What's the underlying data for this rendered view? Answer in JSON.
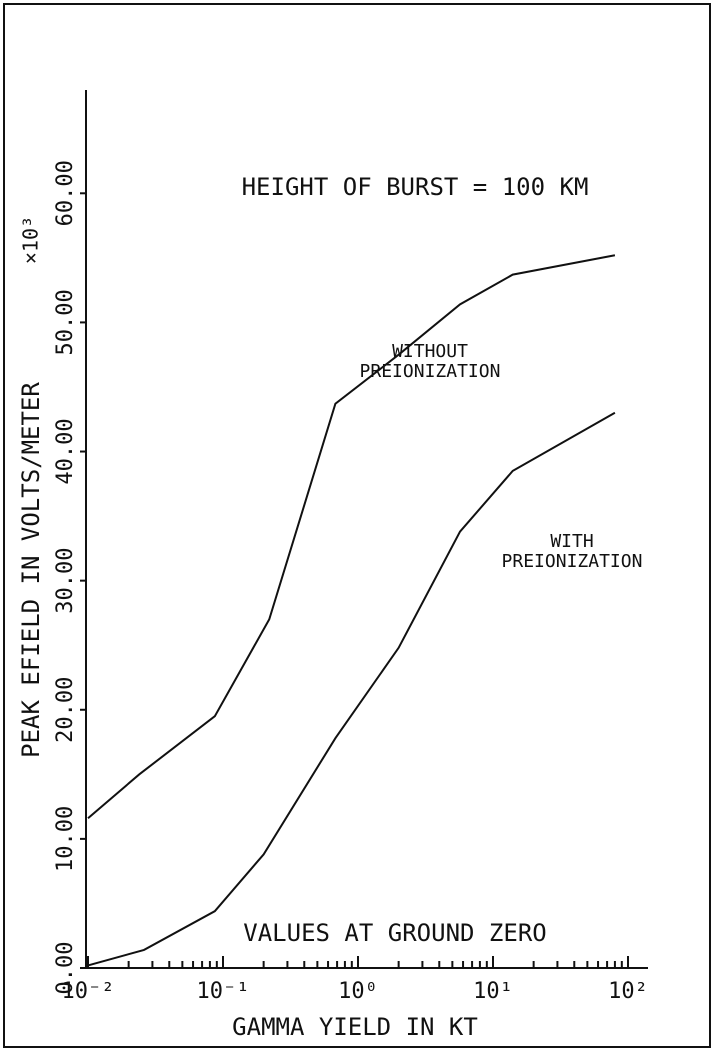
{
  "chart_data": {
    "type": "line",
    "title": "HEIGHT OF BURST = 100 KM",
    "annotation": "VALUES AT GROUND ZERO",
    "xlabel": "GAMMA YIELD IN KT",
    "ylabel": "PEAK EFIELD IN VOLTS/METER",
    "yunit": "×10³",
    "log_x": true,
    "xlim": [
      0.01,
      100
    ],
    "ylim": [
      0,
      68
    ],
    "xticks": [
      {
        "value": 0.01,
        "label": "10⁻²"
      },
      {
        "value": 0.1,
        "label": "10⁻¹"
      },
      {
        "value": 1,
        "label": "10⁰"
      },
      {
        "value": 10,
        "label": "10¹"
      },
      {
        "value": 100,
        "label": "10²"
      }
    ],
    "yticks": [
      {
        "value": 0,
        "label": "0.00"
      },
      {
        "value": 10,
        "label": "10.00"
      },
      {
        "value": 20,
        "label": "20.00"
      },
      {
        "value": 30,
        "label": "30.00"
      },
      {
        "value": 40,
        "label": "40.00"
      },
      {
        "value": 50,
        "label": "50.00"
      },
      {
        "value": 60,
        "label": "60.00"
      }
    ],
    "series": [
      {
        "name": "WITHOUT PREIONIZATION",
        "color": "#111111",
        "x": [
          0.01,
          0.024,
          0.087,
          0.22,
          0.68,
          2,
          5.7,
          14,
          80
        ],
        "values": [
          11.6,
          15,
          19.5,
          27,
          43.7,
          47.5,
          51.4,
          53.7,
          55.2
        ]
      },
      {
        "name": "WITH PREIONIZATION",
        "color": "#111111",
        "x": [
          0.01,
          0.026,
          0.087,
          0.2,
          0.68,
          2,
          5.7,
          14,
          80
        ],
        "values": [
          0.2,
          1.4,
          4.4,
          8.8,
          17.8,
          24.8,
          33.8,
          38.5,
          43
        ]
      }
    ]
  }
}
